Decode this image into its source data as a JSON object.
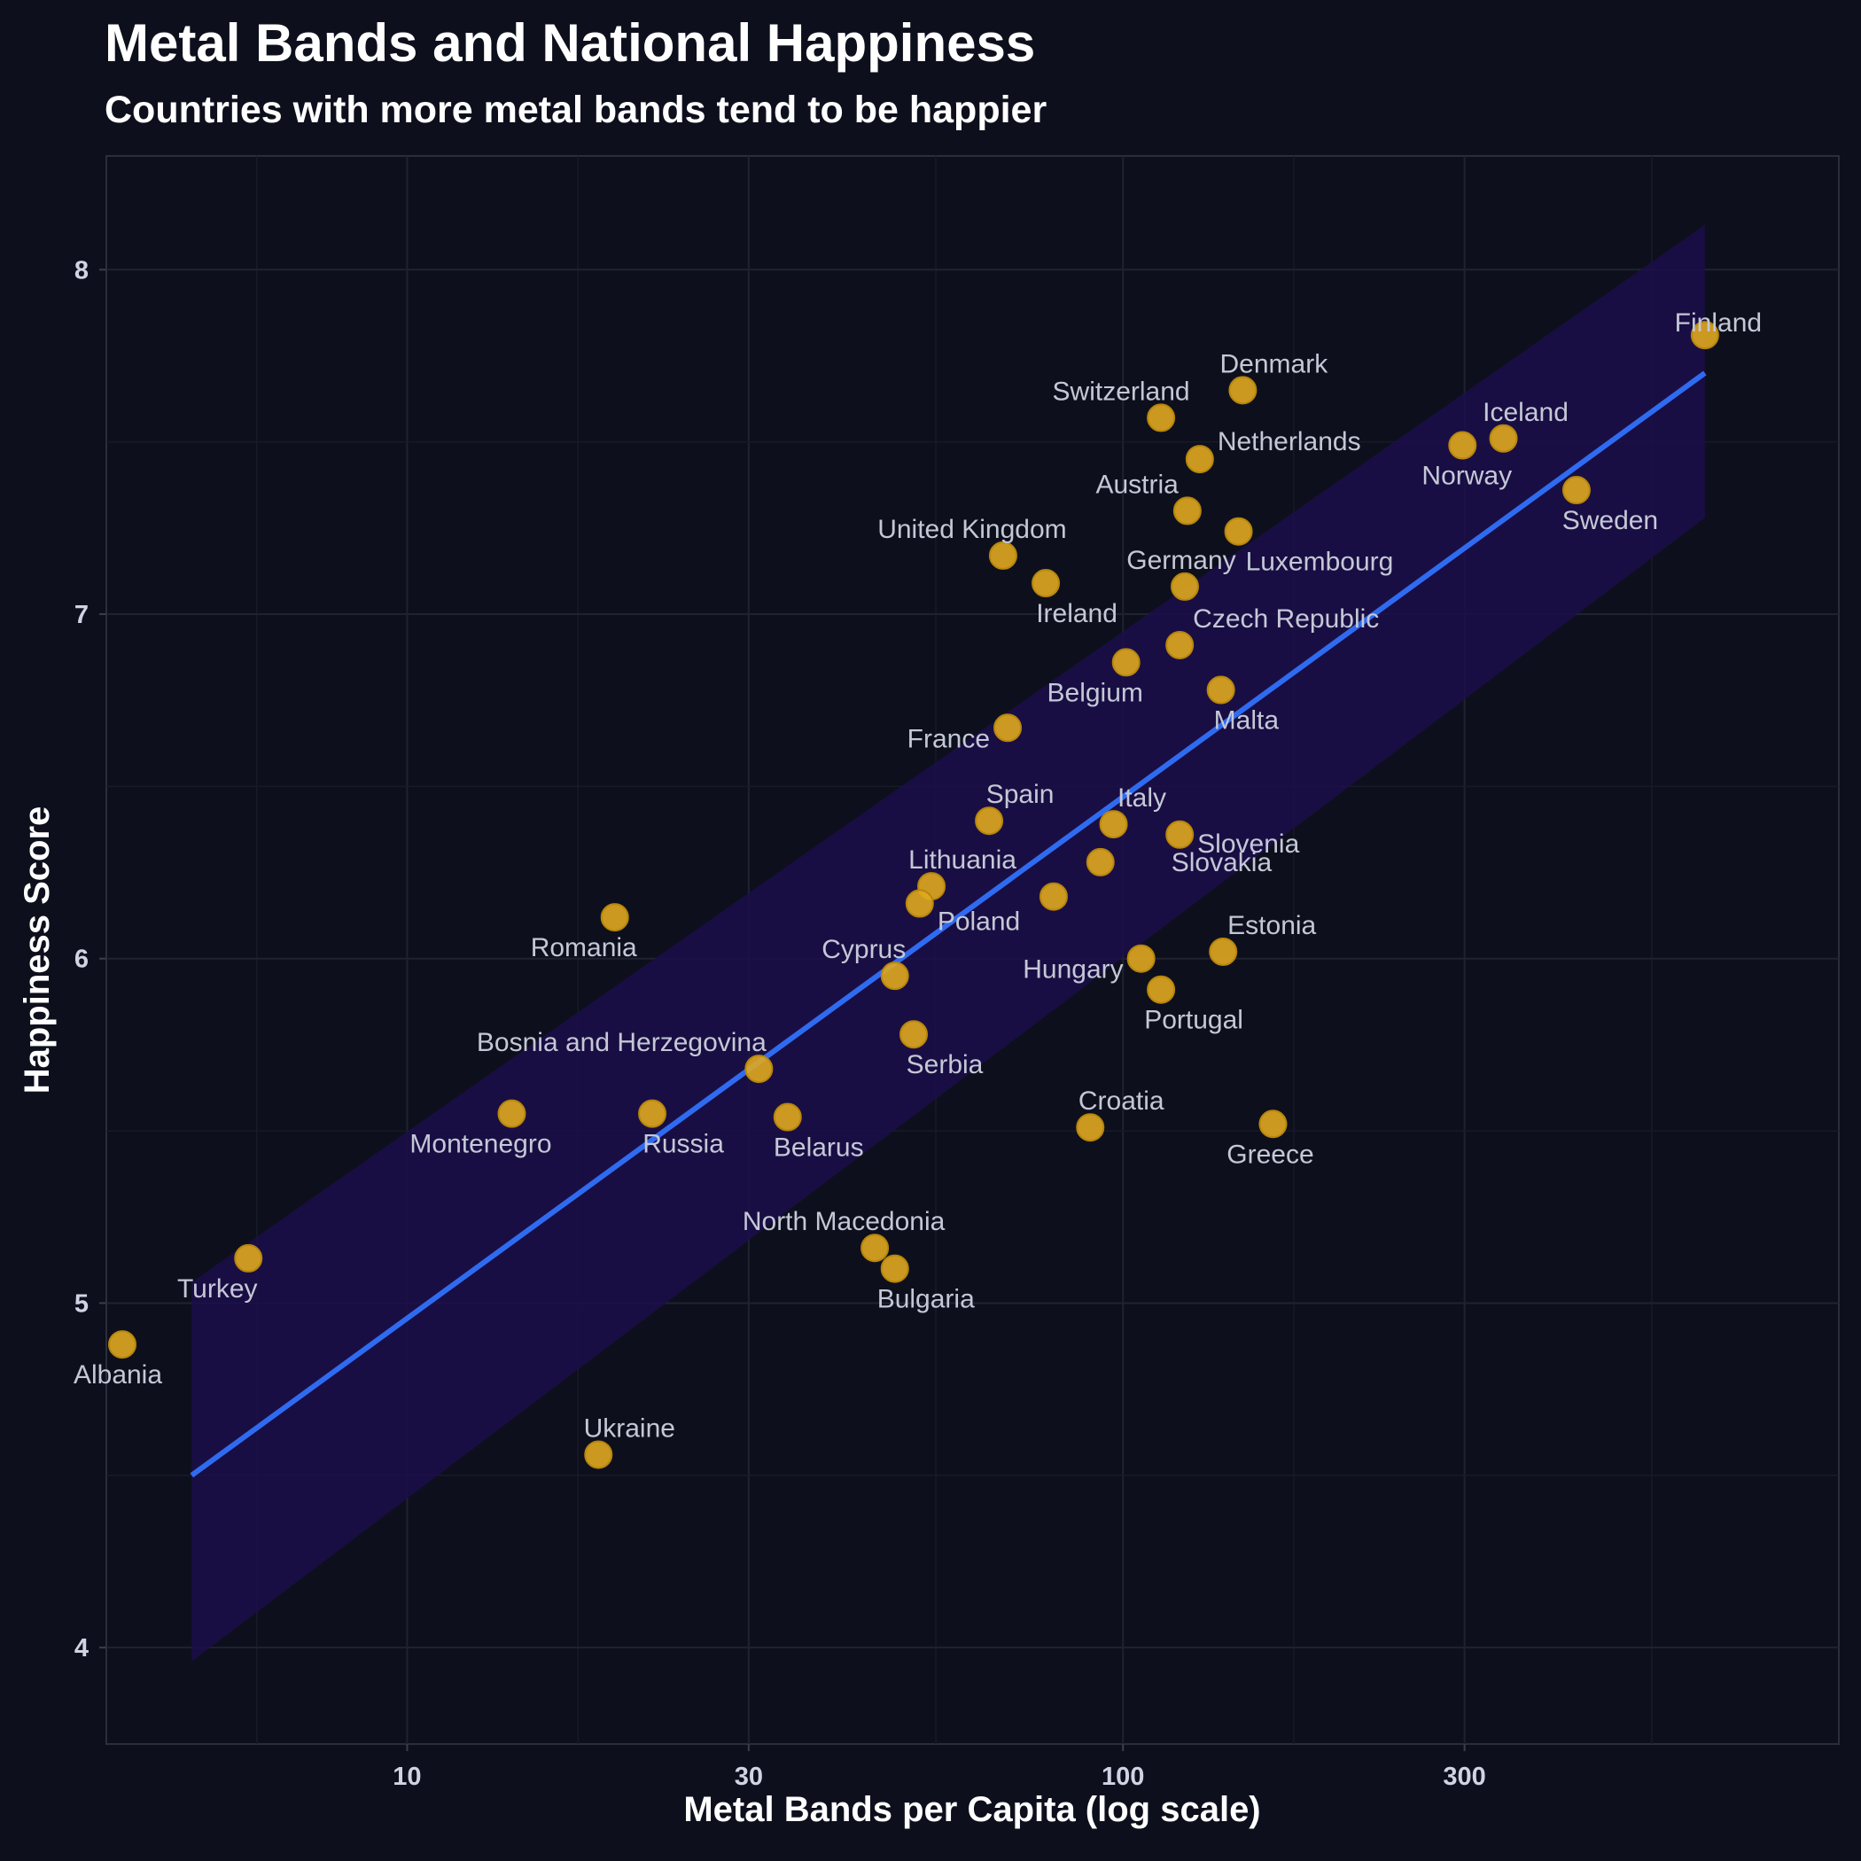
{
  "chart_data": {
    "type": "scatter",
    "title": "Metal Bands and National Happiness",
    "subtitle": "Countries with more metal bands tend to be happier",
    "xlabel": "Metal Bands per Capita (log scale)",
    "ylabel": "Happiness Score",
    "x_scale": "log",
    "xlim": [
      3.8,
      1000
    ],
    "ylim": [
      3.72,
      8.33
    ],
    "x_ticks": [
      10,
      30,
      100,
      300
    ],
    "x_tick_labels": [
      "10",
      "30",
      "100",
      "300"
    ],
    "y_ticks": [
      4,
      5,
      6,
      7,
      8
    ],
    "y_tick_labels": [
      "4",
      "5",
      "6",
      "7",
      "8"
    ],
    "grid": true,
    "colors": {
      "background": "#0d101c",
      "points": "#e0a820",
      "trend_line": "#2f6bf0",
      "confidence_band": "#1c0e4a"
    },
    "trend": {
      "x": [
        5,
        650
      ],
      "y": [
        4.5,
        7.7
      ],
      "band_lower": [
        3.96,
        7.28
      ],
      "band_upper": [
        5.06,
        8.13
      ]
    },
    "points": [
      {
        "country": "Finland",
        "x": 650,
        "y": 7.81,
        "label_pos": "above"
      },
      {
        "country": "Denmark",
        "x": 147,
        "y": 7.65,
        "label_pos": "above-right"
      },
      {
        "country": "Switzerland",
        "x": 113,
        "y": 7.57,
        "label_pos": "above-left"
      },
      {
        "country": "Iceland",
        "x": 340,
        "y": 7.51,
        "label_pos": "above-right"
      },
      {
        "country": "Norway",
        "x": 298,
        "y": 7.49,
        "label_pos": "below"
      },
      {
        "country": "Netherlands",
        "x": 128,
        "y": 7.45,
        "label_pos": "above-right"
      },
      {
        "country": "Sweden",
        "x": 430,
        "y": 7.36,
        "label_pos": "below-right"
      },
      {
        "country": "Austria",
        "x": 123,
        "y": 7.3,
        "label_pos": "above-left"
      },
      {
        "country": "Luxembourg",
        "x": 145,
        "y": 7.24,
        "label_pos": "below-right"
      },
      {
        "country": "United Kingdom",
        "x": 68,
        "y": 7.17,
        "label_pos": "above-left"
      },
      {
        "country": "Ireland",
        "x": 78,
        "y": 7.09,
        "label_pos": "below-right"
      },
      {
        "country": "Germany",
        "x": 122,
        "y": 7.08,
        "label_pos": "above-left"
      },
      {
        "country": "Czech Republic",
        "x": 120,
        "y": 6.91,
        "label_pos": "above-right"
      },
      {
        "country": "Belgium",
        "x": 101,
        "y": 6.86,
        "label_pos": "below-left"
      },
      {
        "country": "Malta",
        "x": 137,
        "y": 6.78,
        "label_pos": "below-right"
      },
      {
        "country": "France",
        "x": 69,
        "y": 6.67,
        "label_pos": "below-left"
      },
      {
        "country": "Spain",
        "x": 65,
        "y": 6.4,
        "label_pos": "above-right"
      },
      {
        "country": "Italy",
        "x": 97,
        "y": 6.39,
        "label_pos": "above-right"
      },
      {
        "country": "Slovenia",
        "x": 120,
        "y": 6.36,
        "label_pos": "below-right"
      },
      {
        "country": "Slovakia",
        "x": 93,
        "y": 6.28,
        "label_pos": "below-right"
      },
      {
        "country": "Lithuania",
        "x": 54,
        "y": 6.21,
        "label_pos": "above-right"
      },
      {
        "country": "Slovakia-dot",
        "x": 80,
        "y": 6.18,
        "label_pos": "none"
      },
      {
        "country": "Poland",
        "x": 52,
        "y": 6.16,
        "label_pos": "below-right"
      },
      {
        "country": "Romania",
        "x": 19.5,
        "y": 6.12,
        "label_pos": "below-left"
      },
      {
        "country": "Estonia",
        "x": 138,
        "y": 6.02,
        "label_pos": "above-right"
      },
      {
        "country": "Hungary",
        "x": 106,
        "y": 6.0,
        "label_pos": "below-left"
      },
      {
        "country": "Cyprus",
        "x": 48,
        "y": 5.95,
        "label_pos": "above-left"
      },
      {
        "country": "Portugal",
        "x": 113,
        "y": 5.91,
        "label_pos": "below-right"
      },
      {
        "country": "Serbia",
        "x": 51,
        "y": 5.78,
        "label_pos": "below-right"
      },
      {
        "country": "Bosnia and Herzegovina",
        "x": 31,
        "y": 5.68,
        "label_pos": "above-left"
      },
      {
        "country": "Montenegro",
        "x": 14,
        "y": 5.55,
        "label_pos": "below-left"
      },
      {
        "country": "Russia",
        "x": 22,
        "y": 5.55,
        "label_pos": "below-right"
      },
      {
        "country": "Belarus",
        "x": 34,
        "y": 5.54,
        "label_pos": "below-right"
      },
      {
        "country": "Greece",
        "x": 162,
        "y": 5.52,
        "label_pos": "below"
      },
      {
        "country": "Croatia",
        "x": 90,
        "y": 5.51,
        "label_pos": "above-right"
      },
      {
        "country": "North Macedonia",
        "x": 45,
        "y": 5.16,
        "label_pos": "above-left"
      },
      {
        "country": "Turkey",
        "x": 6,
        "y": 5.13,
        "label_pos": "below-left"
      },
      {
        "country": "Bulgaria",
        "x": 48,
        "y": 5.1,
        "label_pos": "below-right"
      },
      {
        "country": "Albania",
        "x": 4,
        "y": 4.88,
        "label_pos": "below"
      },
      {
        "country": "Ukraine",
        "x": 18.5,
        "y": 4.56,
        "label_pos": "above-right"
      }
    ]
  }
}
